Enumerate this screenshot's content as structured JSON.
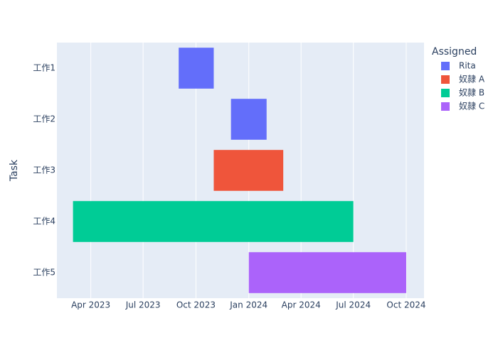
{
  "chart_data": {
    "type": "timeline",
    "x_axis_title": null,
    "y_axis_title": "Task",
    "legend_title": "Assigned",
    "legend_position": "right",
    "grid": true,
    "categories": [
      "工作1",
      "工作2",
      "工作3",
      "工作4",
      "工作5"
    ],
    "xlim": [
      "2023-02",
      "2024-11"
    ],
    "xticks": [
      {
        "value": "2023-04",
        "label": "Apr 2023"
      },
      {
        "value": "2023-07",
        "label": "Jul 2023"
      },
      {
        "value": "2023-10",
        "label": "Oct 2023"
      },
      {
        "value": "2024-01",
        "label": "Jan 2024"
      },
      {
        "value": "2024-04",
        "label": "Apr 2024"
      },
      {
        "value": "2024-07",
        "label": "Jul 2024"
      },
      {
        "value": "2024-10",
        "label": "Oct 2024"
      }
    ],
    "series": [
      {
        "name": "Rita",
        "color": "#636efa",
        "tasks": [
          "工作1",
          "工作2"
        ],
        "start": [
          "2023-09",
          "2023-12"
        ],
        "end": [
          "2023-11",
          "2024-02"
        ]
      },
      {
        "name": "奴隷 A",
        "color": "#ef553b",
        "tasks": [
          "工作3"
        ],
        "start": [
          "2023-11"
        ],
        "end": [
          "2024-03"
        ]
      },
      {
        "name": "奴隷 B",
        "color": "#00cc96",
        "tasks": [
          "工作4"
        ],
        "start": [
          "2023-03"
        ],
        "end": [
          "2024-07"
        ]
      },
      {
        "name": "奴隷 C",
        "color": "#ab63fa",
        "tasks": [
          "工作5"
        ],
        "start": [
          "2024-01"
        ],
        "end": [
          "2024-10"
        ]
      }
    ]
  }
}
